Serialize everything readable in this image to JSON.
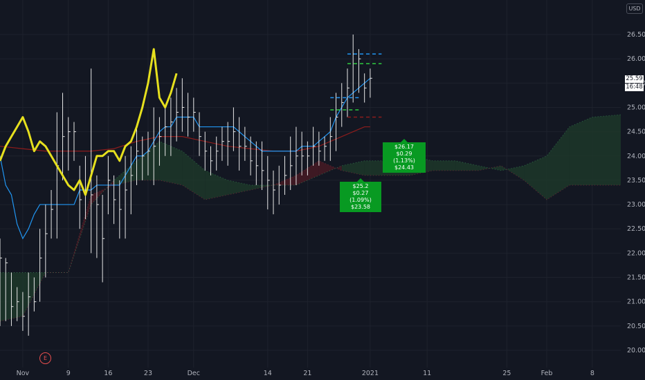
{
  "currency": "USD",
  "last_price": "25.59",
  "countdown": "16:48",
  "earnings_marker": "E",
  "callouts": [
    {
      "high": "$26.17",
      "change": "$0.29 (1.13%)",
      "low": "$24.43"
    },
    {
      "high": "$25.2",
      "change": "$0.27 (1.09%)",
      "low": "$23.58"
    }
  ],
  "colors": {
    "price_line": "#e6e01e",
    "conversion_line": "#2196f3",
    "base_line": "#8e1c1c",
    "bars": "#e8e8e8",
    "cloud_bull": "#1e3a2b",
    "cloud_bear": "#4a1a24",
    "target_blue": "#2196f3",
    "target_green": "#2ecc40"
  },
  "chart_data": {
    "type": "line",
    "title": "",
    "xlabel": "",
    "ylabel": "",
    "ylim": [
      19.85,
      26.85
    ],
    "y_ticks": [
      "26.50",
      "26.00",
      "25.50",
      "25.00",
      "24.50",
      "24.00",
      "23.50",
      "23.00",
      "22.50",
      "22.00",
      "21.50",
      "21.00",
      "20.50",
      "20.00"
    ],
    "x_ticks": [
      "Nov",
      "9",
      "16",
      "23",
      "Dec",
      "14",
      "21",
      "2021",
      "11",
      "25",
      "Feb",
      "8"
    ],
    "x_tick_days": [
      0,
      8,
      15,
      22,
      30,
      43,
      50,
      61,
      71,
      85,
      92,
      100
    ],
    "day_range": [
      -4,
      105
    ],
    "bars": [
      [
        -4,
        22.3,
        20.5,
        21.9
      ],
      [
        -3,
        21.9,
        20.6,
        21.8
      ],
      [
        -2,
        21.6,
        20.5,
        20.9
      ],
      [
        -1,
        21.3,
        20.6,
        21.0
      ],
      [
        0,
        21.2,
        20.4,
        20.7
      ],
      [
        1,
        21.6,
        20.3,
        21.1
      ],
      [
        2,
        21.5,
        20.8,
        21.0
      ],
      [
        3,
        22.5,
        21.0,
        21.9
      ],
      [
        4,
        23.0,
        21.5,
        22.4
      ],
      [
        5,
        23.3,
        22.3,
        22.9
      ],
      [
        6,
        24.9,
        22.3,
        23.8
      ],
      [
        7,
        25.3,
        23.5,
        24.4
      ],
      [
        8,
        24.8,
        23.7,
        24.5
      ],
      [
        9,
        24.7,
        23.9,
        24.5
      ],
      [
        10,
        23.8,
        22.5,
        23.1
      ],
      [
        11,
        24.0,
        22.7,
        23.3
      ],
      [
        12,
        25.8,
        22.0,
        23.2
      ],
      [
        13,
        23.6,
        21.9,
        23.0
      ],
      [
        14,
        23.2,
        21.4,
        22.3
      ],
      [
        15,
        24.0,
        22.8,
        23.5
      ],
      [
        16,
        23.6,
        22.6,
        23.1
      ],
      [
        17,
        23.5,
        22.3,
        22.9
      ],
      [
        18,
        24.0,
        22.3,
        23.3
      ],
      [
        19,
        24.2,
        22.8,
        23.6
      ],
      [
        20,
        24.6,
        23.4,
        24.1
      ],
      [
        21,
        24.4,
        23.5,
        24.0
      ],
      [
        22,
        24.5,
        23.6,
        24.1
      ],
      [
        23,
        25.0,
        23.4,
        24.2
      ],
      [
        24,
        24.8,
        23.8,
        24.4
      ],
      [
        25,
        25.0,
        24.0,
        24.6
      ],
      [
        26,
        25.2,
        24.0,
        24.7
      ],
      [
        27,
        25.4,
        24.3,
        24.9
      ],
      [
        28,
        25.6,
        24.5,
        25.0
      ],
      [
        29,
        25.3,
        24.4,
        24.8
      ],
      [
        30,
        25.2,
        24.5,
        24.9
      ],
      [
        31,
        24.9,
        24.0,
        24.4
      ],
      [
        32,
        24.5,
        23.7,
        24.1
      ],
      [
        33,
        24.2,
        23.6,
        23.9
      ],
      [
        34,
        24.4,
        23.7,
        24.1
      ],
      [
        35,
        24.6,
        23.9,
        24.3
      ],
      [
        36,
        24.7,
        23.8,
        24.3
      ],
      [
        37,
        25.0,
        24.1,
        24.5
      ],
      [
        38,
        24.8,
        23.7,
        24.2
      ],
      [
        39,
        24.6,
        23.9,
        24.2
      ],
      [
        40,
        24.4,
        23.6,
        23.9
      ],
      [
        41,
        24.3,
        23.4,
        23.8
      ],
      [
        42,
        24.3,
        23.3,
        23.7
      ],
      [
        43,
        24.0,
        22.9,
        23.5
      ],
      [
        44,
        23.7,
        22.8,
        23.3
      ],
      [
        45,
        23.8,
        23.0,
        23.4
      ],
      [
        46,
        24.0,
        23.2,
        23.6
      ],
      [
        47,
        24.4,
        23.3,
        23.8
      ],
      [
        48,
        24.6,
        23.4,
        24.0
      ],
      [
        49,
        24.5,
        23.6,
        24.0
      ],
      [
        50,
        24.3,
        23.6,
        24.0
      ],
      [
        51,
        24.6,
        23.8,
        24.2
      ],
      [
        52,
        24.5,
        23.8,
        24.1
      ],
      [
        53,
        24.4,
        23.9,
        24.2
      ],
      [
        54,
        24.8,
        23.9,
        24.4
      ],
      [
        55,
        25.3,
        24.1,
        24.8
      ],
      [
        56,
        25.5,
        24.6,
        25.1
      ],
      [
        57,
        25.8,
        24.8,
        25.4
      ],
      [
        58,
        26.5,
        25.1,
        26.1
      ],
      [
        59,
        26.2,
        25.3,
        26.0
      ],
      [
        60,
        25.7,
        25.1,
        25.4
      ],
      [
        61,
        25.8,
        25.2,
        25.6
      ]
    ],
    "series": [
      {
        "days": [
          -4,
          -3,
          -2,
          -1,
          0,
          1,
          2,
          3,
          4,
          5,
          6,
          7,
          8,
          9,
          10,
          11,
          12,
          13,
          14,
          15,
          16,
          17,
          18,
          19,
          20,
          21,
          22,
          23,
          24,
          25,
          26,
          27
        ],
        "values": [
          23.9,
          24.2,
          24.4,
          24.6,
          24.8,
          24.5,
          24.1,
          24.3,
          24.2,
          24.0,
          23.8,
          23.6,
          23.4,
          23.3,
          23.5,
          23.2,
          23.6,
          24.0,
          24.0,
          24.1,
          24.1,
          23.9,
          24.2,
          24.3,
          24.6,
          25.0,
          25.5,
          26.2,
          25.2,
          25.0,
          25.3,
          25.7
        ]
      },
      {
        "days": [
          -4,
          -3,
          -2,
          -1,
          0,
          1,
          2,
          3,
          4,
          5,
          6,
          7,
          8,
          9,
          10,
          11,
          12,
          13,
          14,
          15,
          16,
          17,
          18,
          19,
          20,
          21,
          22,
          23,
          24,
          25,
          26,
          27,
          28,
          29,
          30,
          31,
          32,
          33,
          34,
          35,
          36,
          37,
          38,
          39,
          40,
          41,
          42,
          43,
          44,
          45,
          46,
          47,
          48,
          49,
          50,
          51,
          52,
          53,
          54,
          55,
          56,
          57,
          58,
          59,
          60,
          61
        ],
        "values": [
          24.0,
          23.4,
          23.2,
          22.6,
          22.3,
          22.5,
          22.8,
          23.0,
          23.0,
          23.0,
          23.0,
          23.0,
          23.0,
          23.0,
          23.3,
          23.3,
          23.3,
          23.4,
          23.4,
          23.4,
          23.4,
          23.4,
          23.6,
          23.8,
          24.0,
          24.0,
          24.1,
          24.3,
          24.5,
          24.6,
          24.6,
          24.8,
          24.8,
          24.8,
          24.8,
          24.6,
          24.6,
          24.6,
          24.6,
          24.6,
          24.6,
          24.6,
          24.5,
          24.4,
          24.3,
          24.2,
          24.1,
          24.1,
          24.1,
          24.1,
          24.1,
          24.1,
          24.1,
          24.2,
          24.2,
          24.2,
          24.3,
          24.4,
          24.5,
          24.8,
          25.0,
          25.2,
          25.3,
          25.4,
          25.5,
          25.6
        ]
      },
      {
        "days": [
          -4,
          0,
          4,
          8,
          12,
          16,
          20,
          24,
          28,
          32,
          36,
          40,
          44,
          48,
          52,
          56,
          60,
          61
        ],
        "values": [
          24.2,
          24.15,
          24.1,
          24.1,
          24.1,
          24.15,
          24.3,
          24.4,
          24.4,
          24.3,
          24.2,
          24.15,
          24.1,
          24.1,
          24.2,
          24.4,
          24.6,
          24.6
        ]
      }
    ],
    "cloud": {
      "days": [
        -4,
        0,
        4,
        8,
        12,
        16,
        20,
        24,
        28,
        32,
        36,
        40,
        44,
        48,
        52,
        56,
        60,
        64,
        68,
        72,
        76,
        80,
        84,
        88,
        92,
        96,
        100,
        105
      ],
      "span_a": [
        21.6,
        21.6,
        21.6,
        21.6,
        23.0,
        23.5,
        23.9,
        24.3,
        24.1,
        23.7,
        23.5,
        23.4,
        23.4,
        23.4,
        23.6,
        23.8,
        23.9,
        23.9,
        24.0,
        23.9,
        23.9,
        23.8,
        23.7,
        23.8,
        24.0,
        24.6,
        24.8,
        24.85
      ],
      "span_b": [
        20.6,
        20.7,
        21.6,
        21.6,
        23.2,
        23.4,
        23.5,
        23.5,
        23.4,
        23.1,
        23.2,
        23.3,
        23.4,
        23.6,
        23.9,
        23.7,
        23.6,
        23.6,
        23.6,
        23.7,
        23.7,
        23.7,
        23.8,
        23.5,
        23.1,
        23.4,
        23.4,
        23.4
      ]
    },
    "targets": [
      {
        "x0": 57,
        "x1": 63,
        "value": 26.1,
        "color": "blue"
      },
      {
        "x0": 57,
        "x1": 63,
        "value": 25.9,
        "color": "green"
      },
      {
        "x0": 57,
        "x1": 63,
        "value": 24.8,
        "color": "red"
      },
      {
        "x0": 54,
        "x1": 59,
        "value": 25.2,
        "color": "blue"
      },
      {
        "x0": 54,
        "x1": 59,
        "value": 24.95,
        "color": "green"
      }
    ]
  }
}
